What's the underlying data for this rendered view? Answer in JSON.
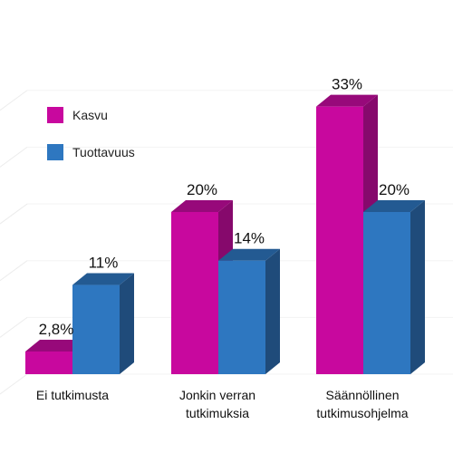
{
  "chart_data": {
    "type": "bar",
    "categories": [
      "Ei tutkimusta",
      "Jonkin verran tutkimuksia",
      "Säännöllinen tutkimusohjelma"
    ],
    "category_lines": [
      [
        "Ei tutkimusta"
      ],
      [
        "Jonkin verran",
        "tutkimuksia"
      ],
      [
        "Säännöllinen",
        "tutkimusohjelma"
      ]
    ],
    "series": [
      {
        "name": "Kasvu",
        "values": [
          2.8,
          20,
          33
        ],
        "labels": [
          "2,8%",
          "20%",
          "33%"
        ],
        "color": "#c8089e",
        "top_color": "#97097a",
        "side_color": "#86096c"
      },
      {
        "name": "Tuottavuus",
        "values": [
          11,
          14,
          20
        ],
        "labels": [
          "11%",
          "14%",
          "20%"
        ],
        "color": "#2e77c0",
        "top_color": "#235a92",
        "side_color": "#1f4b7a"
      }
    ],
    "ylim": [
      0,
      35
    ],
    "grid": true,
    "legend_position": "top-left"
  }
}
